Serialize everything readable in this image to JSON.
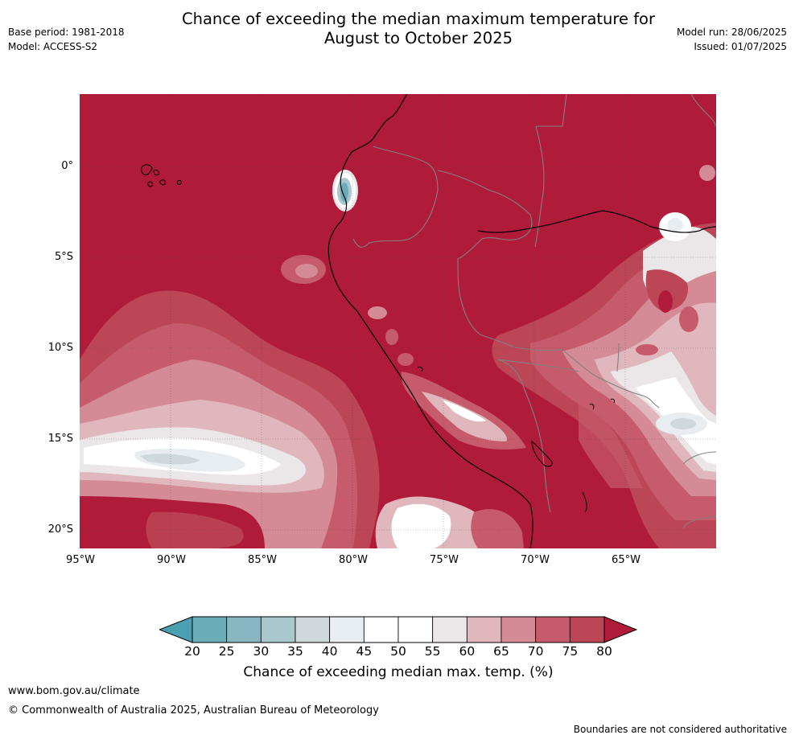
{
  "header": {
    "title_line1": "Chance of exceeding the median maximum temperature for",
    "title_line2": "August to October 2025",
    "base_period": "Base period: 1981-2018",
    "model": "Model: ACCESS-S2",
    "model_run": "Model run: 28/06/2025",
    "issued": "Issued: 01/07/2025"
  },
  "map": {
    "lat_labels": [
      "0°",
      "5°S",
      "10°S",
      "15°S",
      "20°S"
    ],
    "lon_labels": [
      "95°W",
      "90°W",
      "85°W",
      "80°W",
      "75°W",
      "70°W",
      "65°W"
    ],
    "dominant_category": "80+",
    "colors": {
      "above_80": "#b11b3a",
      "range_75_80": "#bc4556",
      "range_70_75": "#c65b6b",
      "range_65_70": "#d48b95",
      "range_60_65": "#e0b7bc",
      "range_55_60": "#ebe7e8",
      "range_45_55": "#ffffff",
      "range_40_45": "#e7edf0",
      "range_35_40": "#cfd8db",
      "range_30_35": "#a8c8cd",
      "range_25_30": "#88b7c1",
      "range_20_25": "#6aacb8",
      "below_20": "#4aa0b0",
      "coastline": "#000000",
      "country_border": "#808080"
    }
  },
  "colorbar": {
    "ticks": [
      "20",
      "25",
      "30",
      "35",
      "40",
      "45",
      "50",
      "55",
      "60",
      "65",
      "70",
      "75",
      "80"
    ],
    "colors": [
      "#6aacb8",
      "#88b7c1",
      "#a8c8cd",
      "#cfd8db",
      "#e7edf0",
      "#ffffff",
      "#ffffff",
      "#ebe7e8",
      "#e0b7bc",
      "#d48b95",
      "#c65b6b",
      "#bc4556"
    ],
    "low_extend_color": "#4aa0b0",
    "high_extend_color": "#b11b3a",
    "label": "Chance of exceeding median max. temp. (%)"
  },
  "footer": {
    "website": "www.bom.gov.au/climate",
    "copyright": "© Commonwealth of Australia 2025, Australian Bureau of Meteorology",
    "disclaimer": "Boundaries are not considered authoritative"
  }
}
